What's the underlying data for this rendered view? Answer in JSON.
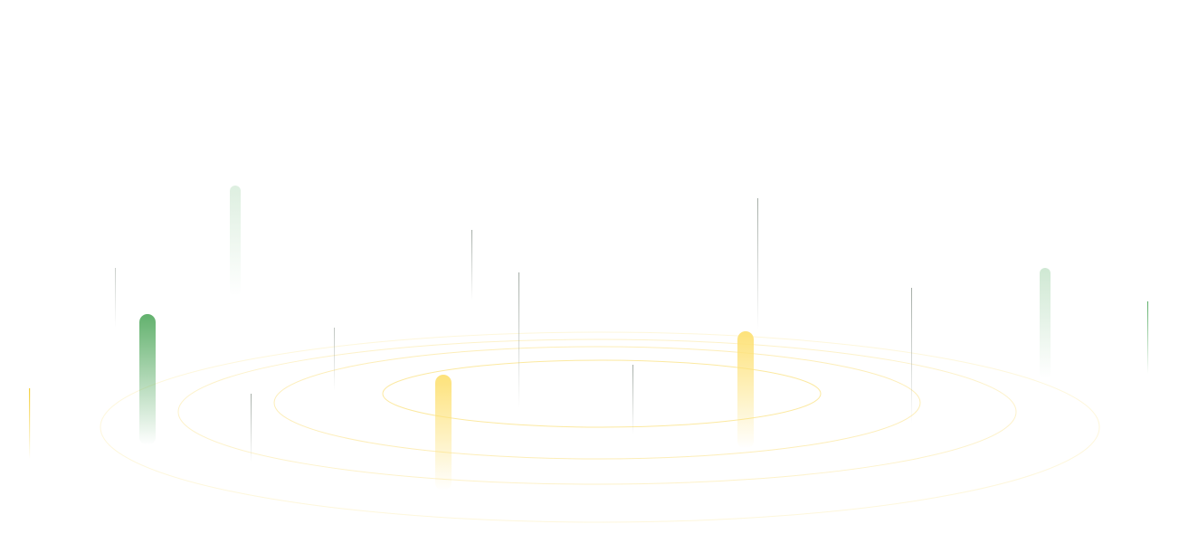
{
  "colors": {
    "background": "#ffffff",
    "ring": "#fbe38a",
    "yellow_pillar": "#fde27a",
    "green_pillar": "#5aad66",
    "light_green_pillar": "#cfe8d3",
    "thin_line_gray": "#9aa39c",
    "thin_line_yellow": "#f3cf3c",
    "thin_line_green": "#5aad66"
  }
}
